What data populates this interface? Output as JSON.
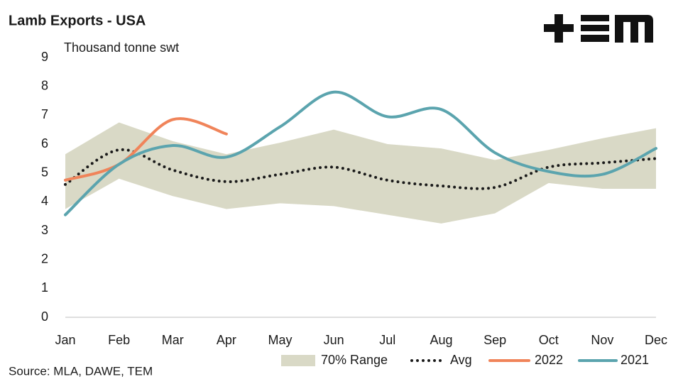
{
  "chart_data": {
    "type": "line",
    "title": "Lamb Exports - USA",
    "y_label": "Thousand tonne swt",
    "source": "Source: MLA, DAWE, TEM",
    "categories": [
      "Jan",
      "Feb",
      "Mar",
      "Apr",
      "May",
      "Jun",
      "Jul",
      "Aug",
      "Sep",
      "Oct",
      "Nov",
      "Dec"
    ],
    "range": {
      "name": "70% Range",
      "color": "#d9d9c6",
      "upper": [
        5.65,
        6.75,
        6.1,
        5.65,
        6.05,
        6.5,
        6.0,
        5.85,
        5.45,
        5.8,
        6.2,
        6.55
      ],
      "lower": [
        3.75,
        4.8,
        4.2,
        3.75,
        3.95,
        3.85,
        3.55,
        3.25,
        3.6,
        4.65,
        4.45,
        4.45
      ]
    },
    "series": [
      {
        "name": "Avg",
        "color": "#1a1a1a",
        "dash": "dotted",
        "values": [
          4.6,
          5.8,
          5.1,
          4.7,
          4.95,
          5.2,
          4.75,
          4.55,
          4.5,
          5.2,
          5.35,
          5.5
        ]
      },
      {
        "name": "2022",
        "color": "#f0845a",
        "values": [
          4.75,
          5.3,
          6.85,
          6.35,
          null,
          null,
          null,
          null,
          null,
          null,
          null,
          null
        ]
      },
      {
        "name": "2021",
        "color": "#5ba4ae",
        "values": [
          3.55,
          5.3,
          5.95,
          5.55,
          6.6,
          7.8,
          6.95,
          7.2,
          5.7,
          5.05,
          4.95,
          5.85
        ]
      }
    ],
    "ylim": [
      0,
      9
    ],
    "yticks": [
      0,
      1,
      2,
      3,
      4,
      5,
      6,
      7,
      8,
      9
    ],
    "grid": false,
    "legend": "bottom"
  }
}
